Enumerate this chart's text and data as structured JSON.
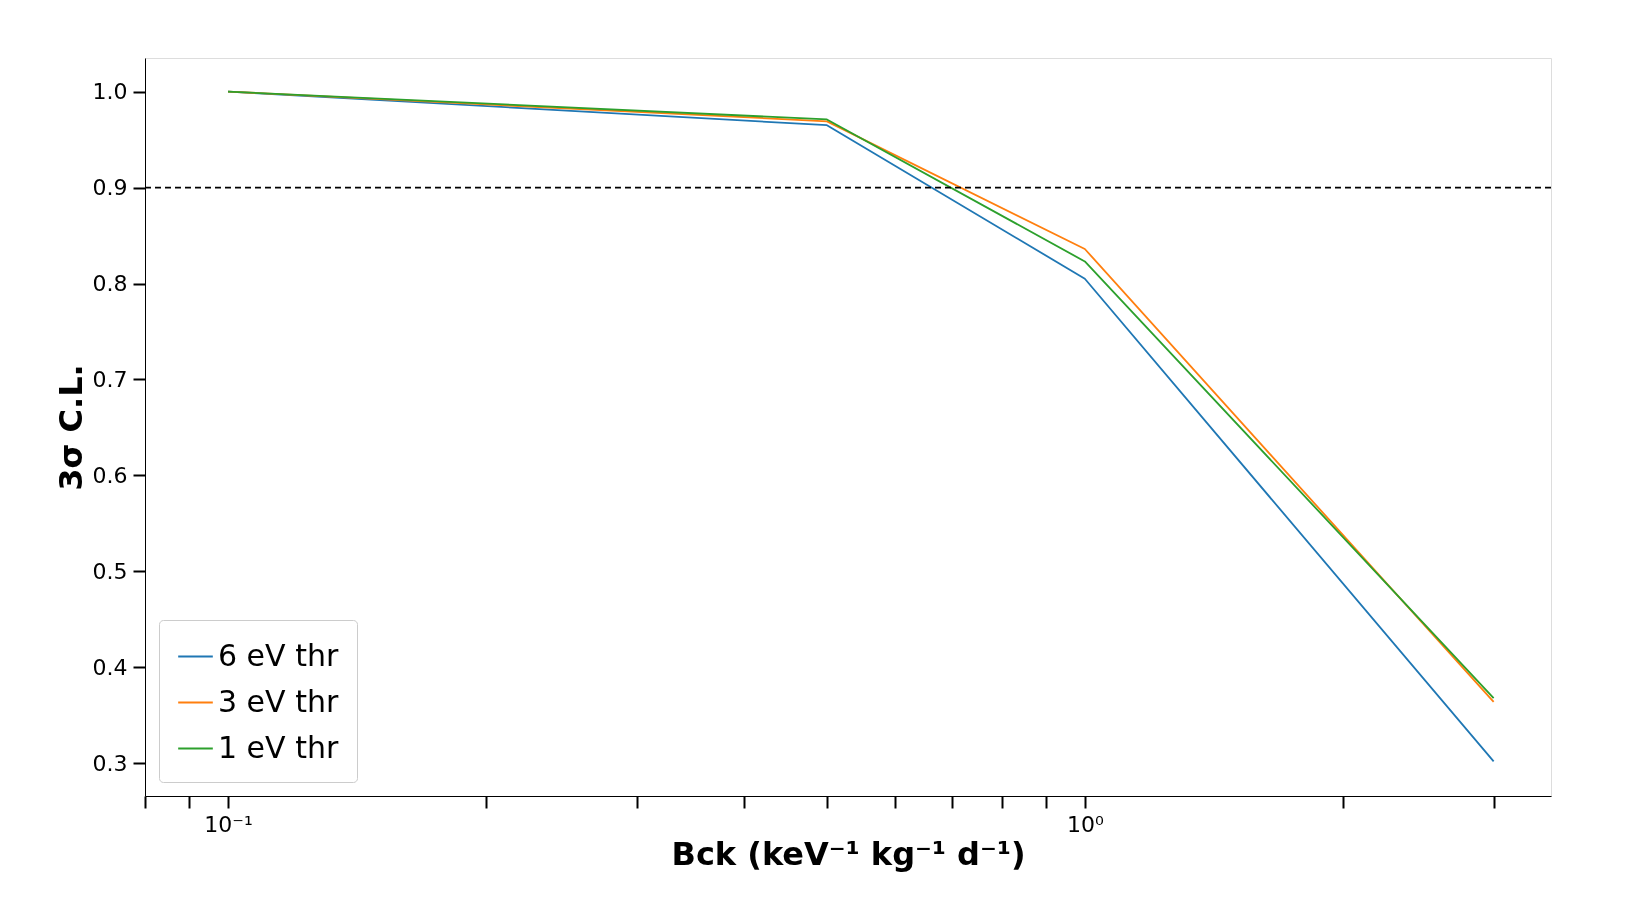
{
  "chart_data": {
    "type": "line",
    "xlabel": "Bck (keV⁻¹ kg⁻¹ d⁻¹)",
    "ylabel": "3σ C.L.",
    "x": [
      0.1,
      0.5,
      1.0,
      3.0
    ],
    "series": [
      {
        "name": "6 eV thr",
        "color": "#1f77b4",
        "values": [
          1.0,
          0.965,
          0.805,
          0.302
        ]
      },
      {
        "name": "3 eV thr",
        "color": "#ff7f0e",
        "values": [
          1.0,
          0.969,
          0.836,
          0.364
        ]
      },
      {
        "name": "1 eV thr",
        "color": "#2ca02c",
        "values": [
          1.0,
          0.971,
          0.823,
          0.368
        ]
      }
    ],
    "log": "x",
    "xlim": [
      0.08,
      3.5
    ],
    "ylim": [
      0.266,
      1.035
    ],
    "xticks": [
      {
        "value": 0.08,
        "label": null
      },
      {
        "value": 0.09,
        "label": null
      },
      {
        "value": 0.1,
        "label": "10⁻¹"
      },
      {
        "value": 0.2,
        "label": null
      },
      {
        "value": 0.3,
        "label": null
      },
      {
        "value": 0.4,
        "label": null
      },
      {
        "value": 0.5,
        "label": null
      },
      {
        "value": 0.6,
        "label": null
      },
      {
        "value": 0.7,
        "label": null
      },
      {
        "value": 0.8,
        "label": null
      },
      {
        "value": 0.9,
        "label": null
      },
      {
        "value": 1.0,
        "label": "10⁰"
      },
      {
        "value": 2.0,
        "label": null
      },
      {
        "value": 3.0,
        "label": null
      }
    ],
    "yticks": [
      {
        "value": 0.3,
        "label": "0.3"
      },
      {
        "value": 0.4,
        "label": "0.4"
      },
      {
        "value": 0.5,
        "label": "0.5"
      },
      {
        "value": 0.6,
        "label": "0.6"
      },
      {
        "value": 0.7,
        "label": "0.7"
      },
      {
        "value": 0.8,
        "label": "0.8"
      },
      {
        "value": 0.9,
        "label": "0.9"
      },
      {
        "value": 1.0,
        "label": "1.0"
      }
    ],
    "ref_lines": [
      {
        "axis": "y",
        "value": 0.9,
        "label": null,
        "color": "#000000",
        "line_style": "dashed"
      }
    ],
    "grid": false,
    "legend": "bottom left",
    "marker": "none",
    "line_style": "solid"
  }
}
